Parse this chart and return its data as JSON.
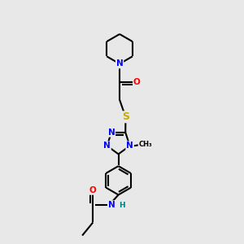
{
  "background_color": "#e8e8e8",
  "atom_colors": {
    "C": "#000000",
    "N": "#0000ff",
    "O": "#ff0000",
    "S": "#ccaa00",
    "H": "#008080"
  },
  "bond_lw": 1.5,
  "font_size": 7.5
}
